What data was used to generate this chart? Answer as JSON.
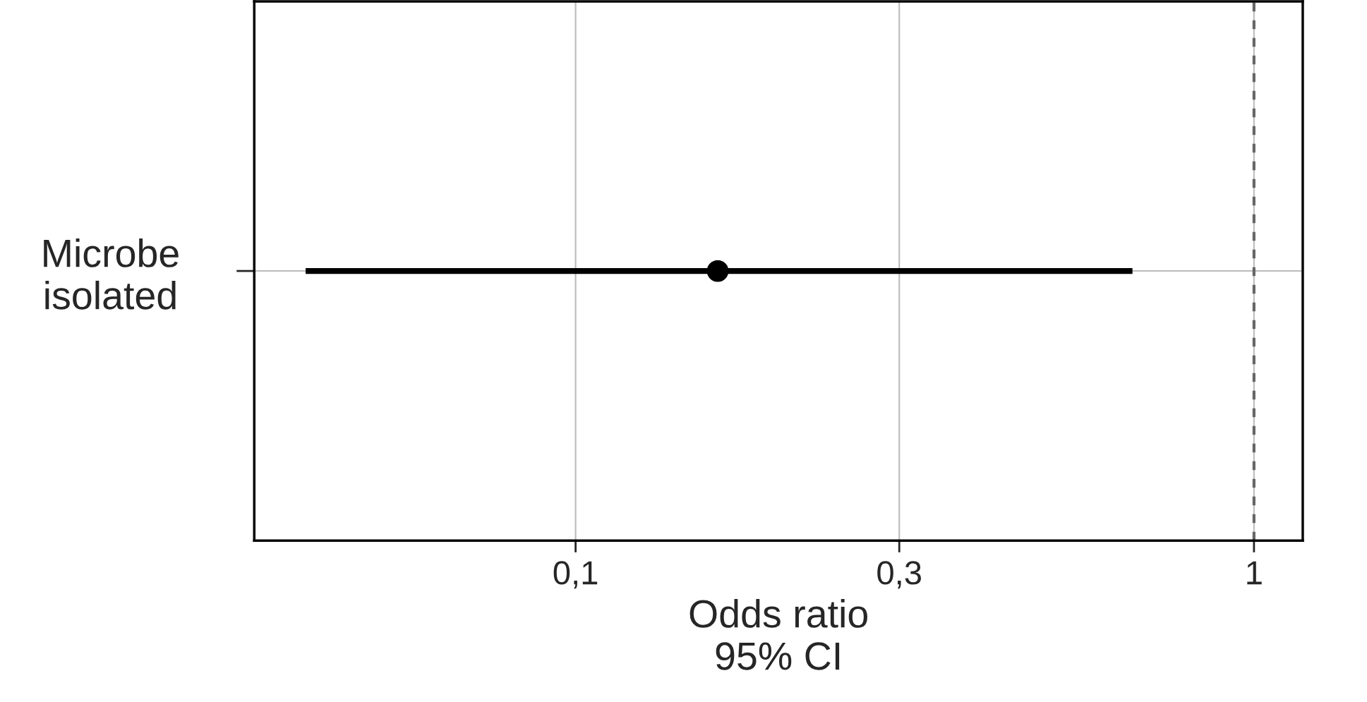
{
  "chart_data": {
    "type": "scatter",
    "orientation": "horizontal",
    "categories": [
      "Microbe\nisolated"
    ],
    "values": [
      0.162
    ],
    "errors": [
      [
        0.04,
        0.662
      ]
    ],
    "color": "#000000",
    "marker": "circle",
    "log": "x",
    "xlim": [
      0.0336,
      1.18
    ],
    "xticks": [
      {
        "value": 0.1,
        "label": "0,1"
      },
      {
        "value": 0.3,
        "label": "0,3"
      },
      1
    ],
    "xlabel": "Odds ratio\n95% CI",
    "grid": true,
    "ref_lines": [
      {
        "axis": "x",
        "value": 1,
        "color": "#666666",
        "line_style": "dashed"
      }
    ]
  }
}
